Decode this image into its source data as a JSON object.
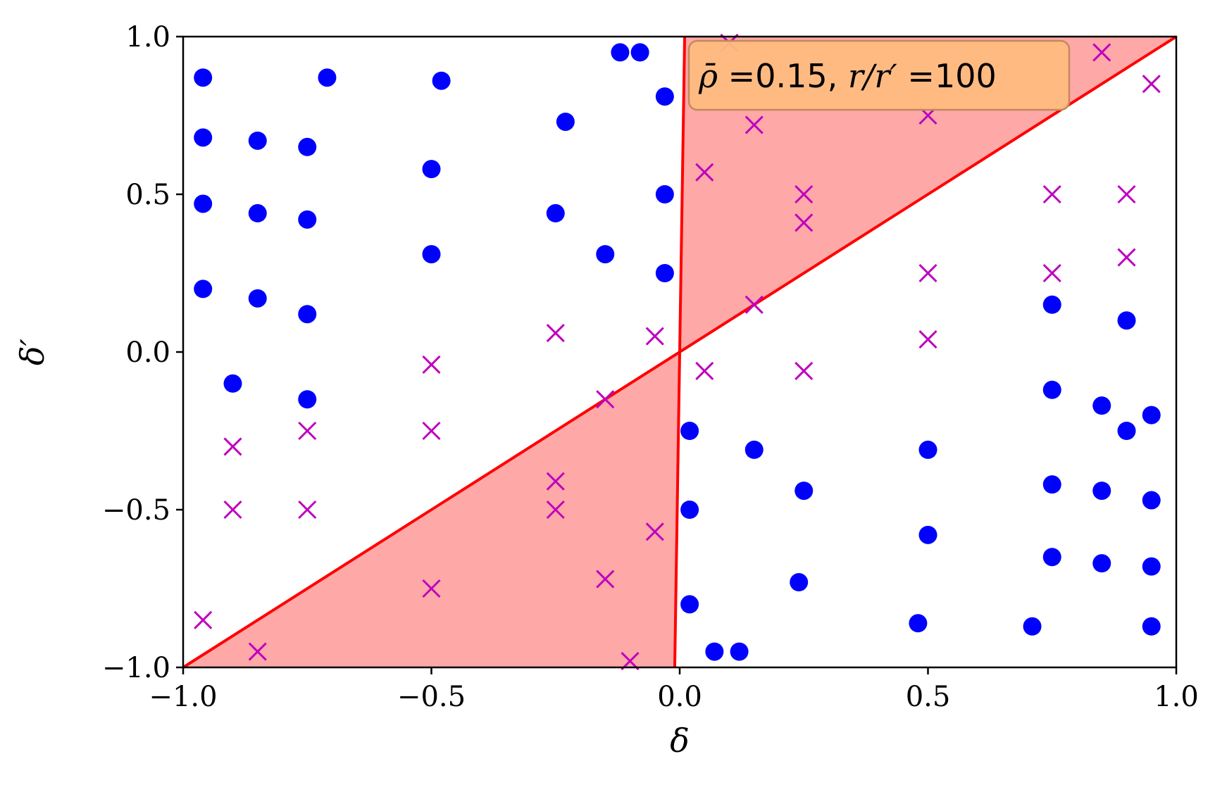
{
  "chart_data": {
    "type": "scatter",
    "xlabel": "δ",
    "ylabel": "δ′",
    "xlim": [
      -1.0,
      1.0
    ],
    "ylim": [
      -1.0,
      1.0
    ],
    "xticks": [
      "−1.0",
      "−0.5",
      "0.0",
      "0.5",
      "1.0"
    ],
    "yticks": [
      "−1.0",
      "−0.5",
      "0.0",
      "0.5",
      "1.0"
    ],
    "grid": false,
    "annotation": {
      "rho_symbol": "ρ̄",
      "rho_eq": " =0.15, ",
      "ratio_symbol": "r/r′",
      "ratio_eq": " =100"
    },
    "colors": {
      "circles": "#0000ff",
      "crosses": "#bf00bf",
      "lines": "#ff0000",
      "region_fill": "#ffa8a8",
      "annotation_bg": "#ffbb7f"
    },
    "lines": [
      {
        "points": [
          [
            -1.0,
            -1.0
          ],
          [
            1.0,
            1.0
          ]
        ]
      },
      {
        "points": [
          [
            -0.01,
            -1.0
          ],
          [
            0.01,
            1.0
          ]
        ]
      }
    ],
    "shaded_regions": [
      {
        "points": [
          [
            0.0,
            0.0
          ],
          [
            0.01,
            1.0
          ],
          [
            1.0,
            1.0
          ]
        ]
      },
      {
        "points": [
          [
            0.0,
            0.0
          ],
          [
            -0.01,
            -1.0
          ],
          [
            -1.0,
            -1.0
          ]
        ]
      }
    ],
    "series": [
      {
        "marker": "circle",
        "points": [
          [
            -0.96,
            0.87
          ],
          [
            -0.71,
            0.87
          ],
          [
            -0.48,
            0.86
          ],
          [
            -0.12,
            0.95
          ],
          [
            -0.08,
            0.95
          ],
          [
            -0.03,
            0.81
          ],
          [
            -0.96,
            0.68
          ],
          [
            -0.85,
            0.67
          ],
          [
            -0.75,
            0.65
          ],
          [
            -0.23,
            0.73
          ],
          [
            -0.5,
            0.58
          ],
          [
            -0.96,
            0.47
          ],
          [
            -0.85,
            0.44
          ],
          [
            -0.75,
            0.42
          ],
          [
            -0.25,
            0.44
          ],
          [
            -0.03,
            0.5
          ],
          [
            -0.5,
            0.31
          ],
          [
            -0.15,
            0.31
          ],
          [
            -0.03,
            0.25
          ],
          [
            -0.96,
            0.2
          ],
          [
            -0.85,
            0.17
          ],
          [
            -0.75,
            0.12
          ],
          [
            -0.9,
            -0.1
          ],
          [
            -0.75,
            -0.15
          ],
          [
            0.02,
            -0.25
          ],
          [
            0.15,
            -0.31
          ],
          [
            0.25,
            -0.44
          ],
          [
            0.02,
            -0.5
          ],
          [
            0.24,
            -0.73
          ],
          [
            0.02,
            -0.8
          ],
          [
            0.07,
            -0.95
          ],
          [
            0.12,
            -0.95
          ],
          [
            0.5,
            -0.31
          ],
          [
            0.5,
            -0.58
          ],
          [
            0.48,
            -0.86
          ],
          [
            0.71,
            -0.87
          ],
          [
            0.75,
            0.15
          ],
          [
            0.9,
            0.1
          ],
          [
            0.75,
            -0.12
          ],
          [
            0.85,
            -0.17
          ],
          [
            0.9,
            -0.25
          ],
          [
            0.95,
            -0.2
          ],
          [
            0.75,
            -0.42
          ],
          [
            0.85,
            -0.44
          ],
          [
            0.95,
            -0.47
          ],
          [
            0.75,
            -0.65
          ],
          [
            0.85,
            -0.67
          ],
          [
            0.95,
            -0.68
          ],
          [
            0.95,
            -0.87
          ]
        ]
      },
      {
        "marker": "cross",
        "points": [
          [
            0.1,
            0.98
          ],
          [
            0.85,
            0.95
          ],
          [
            0.95,
            0.85
          ],
          [
            0.5,
            0.75
          ],
          [
            0.15,
            0.72
          ],
          [
            0.05,
            0.57
          ],
          [
            0.25,
            0.5
          ],
          [
            0.25,
            0.41
          ],
          [
            0.75,
            0.5
          ],
          [
            0.9,
            0.5
          ],
          [
            0.9,
            0.3
          ],
          [
            0.75,
            0.25
          ],
          [
            0.5,
            0.25
          ],
          [
            0.15,
            0.15
          ],
          [
            0.5,
            0.04
          ],
          [
            0.05,
            -0.06
          ],
          [
            0.25,
            -0.06
          ],
          [
            -0.25,
            0.06
          ],
          [
            -0.05,
            0.05
          ],
          [
            -0.5,
            -0.04
          ],
          [
            -0.15,
            -0.15
          ],
          [
            -0.5,
            -0.25
          ],
          [
            -0.9,
            -0.3
          ],
          [
            -0.75,
            -0.25
          ],
          [
            -0.9,
            -0.5
          ],
          [
            -0.75,
            -0.5
          ],
          [
            -0.25,
            -0.41
          ],
          [
            -0.25,
            -0.5
          ],
          [
            -0.05,
            -0.57
          ],
          [
            -0.15,
            -0.72
          ],
          [
            -0.5,
            -0.75
          ],
          [
            -0.96,
            -0.85
          ],
          [
            -0.85,
            -0.95
          ],
          [
            -0.1,
            -0.98
          ]
        ]
      }
    ]
  }
}
